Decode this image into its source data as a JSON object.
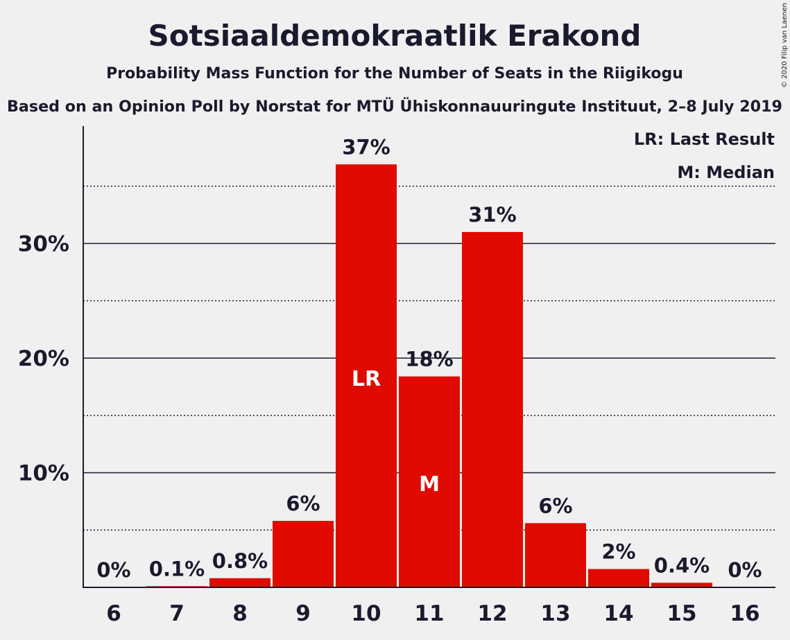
{
  "chart_data": {
    "type": "bar",
    "title": "Sotsiaaldemokraatlik Erakond",
    "subtitle": "Probability Mass Function for the Number of Seats in the Riigikogu",
    "subtitle2": "Based on an Opinion Poll by Norstat for MTÜ Ühiskonnauuringute Instituut, 2–8 July 2019",
    "copyright": "© 2020 Filip van Laenen",
    "categories": [
      "6",
      "7",
      "8",
      "9",
      "10",
      "11",
      "12",
      "13",
      "14",
      "15",
      "16"
    ],
    "values": [
      0,
      0.1,
      0.8,
      5.8,
      36.9,
      18.4,
      31.0,
      5.6,
      1.6,
      0.4,
      0
    ],
    "data_labels": [
      "0%",
      "0.1%",
      "0.8%",
      "6%",
      "37%",
      "18%",
      "31%",
      "6%",
      "2%",
      "0.4%",
      "0%"
    ],
    "y_ticks": [
      {
        "value": 10,
        "label": "10%"
      },
      {
        "value": 20,
        "label": "20%"
      },
      {
        "value": 30,
        "label": "30%"
      }
    ],
    "minor_grid": [
      5,
      15,
      25,
      35
    ],
    "ylim": [
      0,
      40
    ],
    "bar_markers": [
      {
        "category": "10",
        "label": "LR"
      },
      {
        "category": "11",
        "label": "M"
      }
    ],
    "legend": {
      "placement": "top-right",
      "lines": [
        "LR: Last Result",
        "M: Median"
      ]
    },
    "colors": {
      "bar": "#e00a00",
      "text": "#1a1a2e",
      "background": "#f0f0f0"
    },
    "xlabel": "",
    "ylabel": ""
  }
}
